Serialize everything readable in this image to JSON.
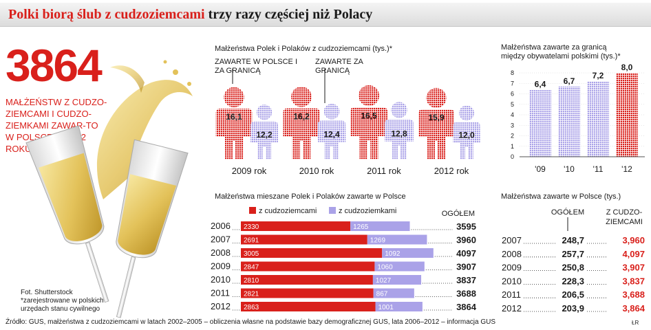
{
  "header": {
    "title_red": "Polki biorą ślub z cudzoziemcami",
    "title_black": " trzy razy częściej niż Polacy"
  },
  "highlight": {
    "number": "3864",
    "caption": "MAŁŻEŃSTW Z CUDZO-ZIEMCAMI I CUDZO-ZIEMKAMI ZAWAR-TO W POLSCE W 2012 ROKU"
  },
  "photo_credit": "Fot. Shutterstock",
  "footnote": "*zarejestrowane w polskich urzędach stanu cywilnego",
  "source": "Źródło: GUS, małżeństwa z cudzoziemcami w latach 2002–2005 – obliczenia własne na podstawie bazy demograficznej GUS, lata 2006–2012 – informacja GUS",
  "signature": "ŁR",
  "colors": {
    "red": "#d9201b",
    "lavender": "#aaa2e8",
    "dark": "#1a1a1a"
  },
  "chart_data": [
    {
      "type": "bar",
      "title": "Małżeństwa Polek i Polaków z cudzoziemcami (tys.)*",
      "annotation_a": "ZAWARTE W POLSCE I ZA GRANICĄ",
      "annotation_b": "ZAWARTE ZA GRANICĄ",
      "categories": [
        "2009 rok",
        "2010 rok",
        "2011 rok",
        "2012 rok"
      ],
      "series": [
        {
          "values": [
            16.1,
            16.2,
            16.5,
            15.9
          ],
          "labels": [
            "16,1",
            "16,2",
            "16,5",
            "15,9"
          ]
        },
        {
          "values": [
            12.2,
            12.4,
            12.8,
            12.0
          ],
          "labels": [
            "12,2",
            "12,4",
            "12,8",
            "12,0"
          ]
        }
      ]
    },
    {
      "type": "bar",
      "title_line1": "Małżeństwa zawarte za granicą",
      "title_line2": "między obywatelami polskimi (tys.)*",
      "categories": [
        "'09",
        "'10",
        "'11",
        "'12"
      ],
      "values": [
        6.4,
        6.7,
        7.2,
        8.0
      ],
      "labels": [
        "6,4",
        "6,7",
        "7,2",
        "8,0"
      ],
      "yticks": [
        "0",
        "1",
        "2",
        "3",
        "4",
        "5",
        "6",
        "7",
        "8"
      ],
      "ylim": [
        0,
        8
      ]
    },
    {
      "type": "bar",
      "stacked": true,
      "title": "Małżeństwa mieszane Polek i Polaków zawarte w Polsce",
      "legend": [
        "z cudzoziemcami",
        "z cudzoziemkami"
      ],
      "total_label": "OGÓŁEM",
      "categories": [
        "2006",
        "2007",
        "2008",
        "2009",
        "2010",
        "2011",
        "2012"
      ],
      "series": [
        {
          "name": "z cudzoziemcami",
          "values": [
            2330,
            2691,
            3005,
            2847,
            2810,
            2821,
            2863
          ],
          "labels": [
            "2330",
            "2691",
            "3005",
            "2847",
            "2810",
            "2821",
            "2863"
          ]
        },
        {
          "name": "z cudzoziemkami",
          "values": [
            1265,
            1269,
            1092,
            1060,
            1027,
            867,
            1001
          ],
          "labels": [
            "1265",
            "1269",
            "1092",
            "1060",
            "1027",
            "867",
            "1001"
          ]
        }
      ],
      "totals": [
        "3595",
        "3960",
        "4097",
        "3907",
        "3837",
        "3688",
        "3864"
      ]
    },
    {
      "type": "table",
      "title": "Małżeństwa zawarte w Polsce (tys.)",
      "columns": [
        "OGÓŁEM",
        "Z CUDZO- ZIEMCAMI"
      ],
      "col2_line1": "Z CUDZO-",
      "col2_line2": "ZIEMCAMI",
      "rows": [
        {
          "year": "2007",
          "total": "248,7",
          "foreign": "3,960"
        },
        {
          "year": "2008",
          "total": "257,7",
          "foreign": "4,097"
        },
        {
          "year": "2009",
          "total": "250,8",
          "foreign": "3,907"
        },
        {
          "year": "2010",
          "total": "228,3",
          "foreign": "3,837"
        },
        {
          "year": "2011",
          "total": "206,5",
          "foreign": "3,688"
        },
        {
          "year": "2012",
          "total": "203,9",
          "foreign": "3,864"
        }
      ]
    }
  ]
}
